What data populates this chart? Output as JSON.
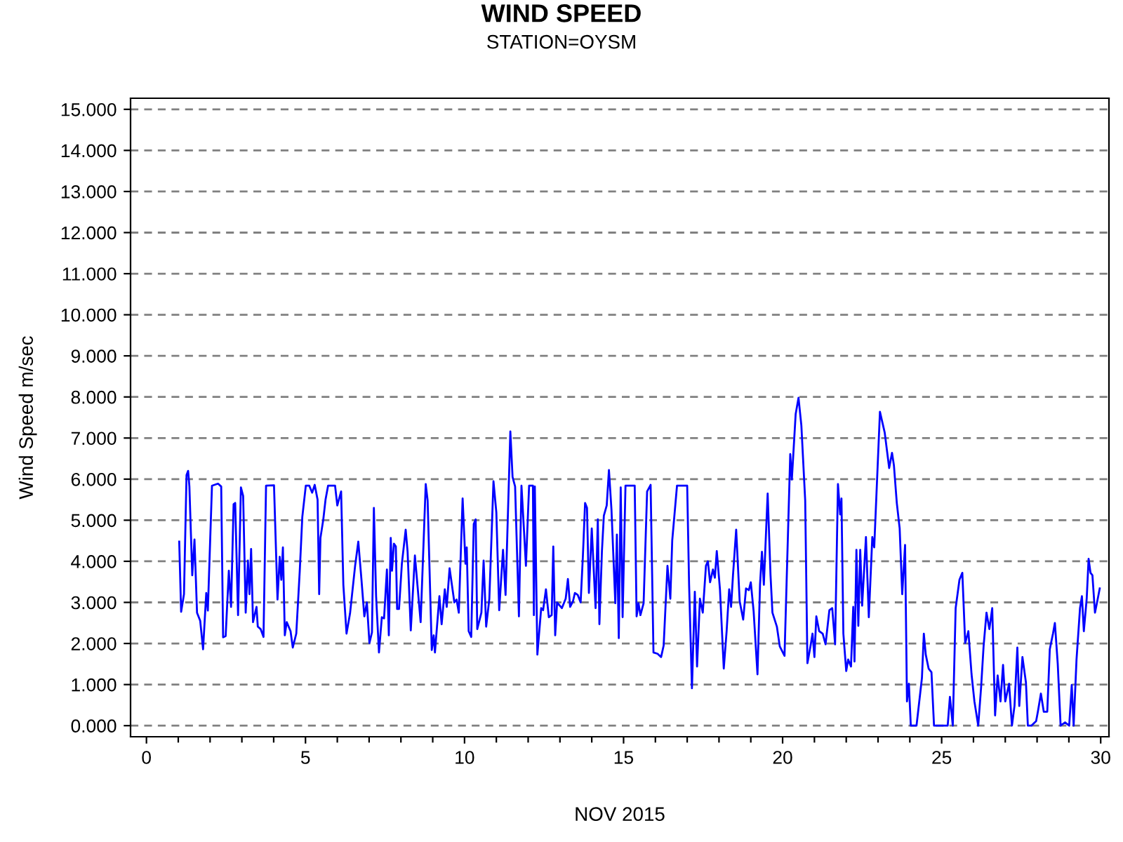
{
  "chart_data": {
    "type": "line",
    "title": "WIND SPEED",
    "subtitle": "STATION=OYSM",
    "xlabel": "NOV 2015",
    "ylabel": "Wind Speed m/sec",
    "x": [
      1.03,
      1.09,
      1.18,
      1.26,
      1.31,
      1.35,
      1.44,
      1.51,
      1.59,
      1.69,
      1.78,
      1.88,
      1.93,
      2.06,
      2.25,
      2.35,
      2.41,
      2.49,
      2.59,
      2.66,
      2.74,
      2.79,
      2.88,
      2.97,
      3.04,
      3.12,
      3.19,
      3.24,
      3.29,
      3.35,
      3.46,
      3.5,
      3.59,
      3.68,
      3.76,
      4.01,
      4.12,
      4.19,
      4.24,
      4.29,
      4.35,
      4.41,
      4.53,
      4.6,
      4.71,
      4.82,
      4.9,
      5.01,
      5.12,
      5.21,
      5.29,
      5.38,
      5.43,
      5.47,
      5.56,
      5.63,
      5.71,
      5.93,
      6.0,
      6.12,
      6.19,
      6.29,
      6.4,
      6.56,
      6.66,
      6.76,
      6.85,
      6.93,
      7.01,
      7.09,
      7.15,
      7.22,
      7.31,
      7.4,
      7.47,
      7.56,
      7.62,
      7.68,
      7.72,
      7.78,
      7.84,
      7.88,
      7.94,
      8.03,
      8.15,
      8.21,
      8.31,
      8.44,
      8.62,
      8.78,
      8.84,
      8.97,
      9.03,
      9.07,
      9.21,
      9.28,
      9.38,
      9.44,
      9.53,
      9.68,
      9.75,
      9.82,
      9.94,
      10.03,
      10.07,
      10.13,
      10.21,
      10.29,
      10.35,
      10.4,
      10.53,
      10.6,
      10.68,
      10.78,
      10.91,
      11.0,
      11.09,
      11.21,
      11.29,
      11.44,
      11.51,
      11.59,
      11.71,
      11.79,
      11.85,
      11.93,
      12.03,
      12.15,
      12.18,
      12.21,
      12.29,
      12.41,
      12.47,
      12.56,
      12.65,
      12.74,
      12.79,
      12.85,
      12.91,
      13.06,
      13.18,
      13.25,
      13.32,
      13.41,
      13.47,
      13.56,
      13.65,
      13.72,
      13.79,
      13.85,
      13.91,
      14.0,
      14.12,
      14.19,
      14.24,
      14.32,
      14.38,
      14.47,
      14.54,
      14.62,
      14.74,
      14.79,
      14.85,
      14.91,
      14.97,
      15.06,
      15.35,
      15.41,
      15.47,
      15.53,
      15.63,
      15.74,
      15.85,
      15.94,
      16.07,
      16.18,
      16.26,
      16.38,
      16.47,
      16.53,
      16.68,
      17.0,
      17.06,
      17.15,
      17.24,
      17.31,
      17.4,
      17.49,
      17.59,
      17.65,
      17.72,
      17.81,
      17.87,
      17.93,
      18.03,
      18.15,
      18.24,
      18.32,
      18.38,
      18.44,
      18.54,
      18.65,
      18.76,
      18.85,
      18.94,
      19.0,
      19.09,
      19.21,
      19.29,
      19.35,
      19.41,
      19.53,
      19.62,
      19.68,
      19.82,
      19.91,
      20.06,
      20.24,
      20.29,
      20.41,
      20.5,
      20.59,
      20.71,
      20.78,
      20.88,
      20.94,
      21.0,
      21.06,
      21.15,
      21.26,
      21.35,
      21.47,
      21.56,
      21.65,
      21.74,
      21.81,
      21.85,
      21.91,
      22.0,
      22.06,
      22.15,
      22.22,
      22.26,
      22.32,
      22.38,
      22.44,
      22.5,
      22.62,
      22.71,
      22.82,
      22.88,
      23.06,
      23.21,
      23.35,
      23.44,
      23.5,
      23.59,
      23.68,
      23.76,
      23.85,
      23.91,
      23.97,
      24.03,
      24.21,
      24.38,
      24.44,
      24.5,
      24.59,
      24.68,
      24.76,
      25.19,
      25.26,
      25.35,
      25.44,
      25.56,
      25.65,
      25.74,
      25.84,
      25.94,
      26.03,
      26.15,
      26.24,
      26.32,
      26.41,
      26.5,
      26.59,
      26.68,
      26.76,
      26.85,
      26.93,
      27.0,
      27.12,
      27.21,
      27.29,
      27.38,
      27.44,
      27.54,
      27.65,
      27.71,
      27.82,
      27.97,
      28.03,
      28.12,
      28.21,
      28.32,
      28.4,
      28.5,
      28.56,
      28.65,
      28.74,
      28.88,
      29.01,
      29.09,
      29.15,
      29.24,
      29.35,
      29.41,
      29.47,
      29.56,
      29.62,
      29.68,
      29.74,
      29.82,
      29.88,
      29.97
    ],
    "series": [
      {
        "color": "#0000ff",
        "values": [
          4.48,
          2.77,
          3.2,
          6.1,
          6.2,
          5.82,
          3.66,
          4.53,
          2.75,
          2.55,
          1.86,
          3.23,
          2.8,
          5.84,
          5.89,
          5.82,
          2.15,
          2.18,
          3.77,
          2.89,
          5.39,
          5.42,
          2.69,
          5.8,
          5.59,
          2.75,
          4.02,
          3.2,
          4.3,
          2.52,
          2.89,
          2.41,
          2.35,
          2.16,
          5.84,
          5.85,
          3.07,
          4.11,
          3.55,
          4.34,
          2.2,
          2.52,
          2.3,
          1.9,
          2.24,
          3.77,
          5.08,
          5.84,
          5.84,
          5.67,
          5.86,
          5.5,
          3.2,
          4.57,
          5.02,
          5.5,
          5.84,
          5.84,
          5.36,
          5.7,
          3.43,
          2.24,
          2.73,
          3.89,
          4.48,
          3.55,
          2.66,
          3.0,
          2.01,
          2.27,
          5.3,
          3.15,
          1.78,
          2.64,
          2.61,
          3.8,
          2.2,
          4.57,
          3.77,
          4.43,
          4.36,
          2.84,
          2.84,
          3.94,
          4.77,
          4.23,
          2.32,
          4.14,
          2.52,
          5.88,
          5.48,
          1.84,
          2.2,
          1.78,
          3.15,
          2.47,
          3.32,
          2.89,
          3.83,
          3.0,
          3.07,
          2.75,
          5.53,
          3.94,
          4.34,
          2.3,
          2.16,
          4.91,
          5.02,
          2.35,
          2.75,
          4.02,
          2.41,
          3.09,
          5.95,
          5.19,
          2.81,
          4.28,
          3.18,
          7.16,
          6.05,
          5.82,
          2.66,
          5.84,
          5.02,
          3.89,
          5.84,
          5.84,
          2.69,
          5.82,
          1.73,
          2.86,
          2.81,
          3.32,
          2.64,
          2.69,
          4.36,
          2.2,
          3.0,
          2.86,
          3.09,
          3.57,
          2.89,
          3.03,
          3.23,
          3.18,
          3.0,
          4.11,
          5.42,
          5.3,
          3.23,
          4.8,
          2.86,
          5.02,
          2.47,
          4.25,
          5.11,
          5.36,
          6.22,
          5.25,
          2.98,
          4.65,
          2.13,
          5.8,
          2.64,
          5.84,
          5.84,
          2.66,
          2.98,
          2.69,
          2.98,
          5.7,
          5.86,
          1.78,
          1.75,
          1.67,
          1.95,
          3.89,
          3.09,
          4.51,
          5.84,
          5.84,
          3.43,
          0.91,
          3.26,
          1.44,
          3.09,
          2.75,
          3.89,
          4.0,
          3.49,
          3.8,
          3.6,
          4.25,
          3.32,
          1.39,
          2.3,
          3.32,
          2.89,
          3.66,
          4.77,
          3.03,
          2.58,
          3.34,
          3.3,
          3.49,
          2.77,
          1.25,
          3.43,
          4.23,
          3.43,
          5.65,
          3.66,
          2.75,
          2.41,
          1.93,
          1.7,
          6.61,
          5.99,
          7.58,
          7.98,
          7.3,
          5.48,
          1.52,
          1.95,
          2.24,
          1.67,
          2.66,
          2.3,
          2.24,
          1.98,
          2.81,
          2.86,
          1.98,
          5.88,
          5.14,
          5.53,
          2.24,
          1.33,
          1.61,
          1.44,
          2.89,
          1.56,
          4.28,
          2.43,
          4.28,
          2.92,
          4.59,
          2.64,
          4.59,
          4.34,
          7.64,
          7.13,
          6.27,
          6.64,
          6.33,
          5.42,
          4.8,
          3.2,
          4.4,
          0.59,
          1.02,
          0,
          0,
          1.16,
          2.24,
          1.73,
          1.39,
          1.3,
          0,
          0,
          0.7,
          0,
          2.86,
          3.55,
          3.72,
          2.01,
          2.3,
          1.25,
          0.59,
          0,
          0.93,
          1.95,
          2.75,
          2.35,
          2.86,
          0.25,
          1.22,
          0.59,
          1.48,
          0.59,
          1.02,
          0,
          0.48,
          1.9,
          0.48,
          1.67,
          1.05,
          0,
          0,
          0.11,
          0.36,
          0.78,
          0.34,
          0.34,
          1.86,
          2.24,
          2.5,
          1.5,
          0,
          0.08,
          0,
          0.99,
          0,
          1.61,
          2.86,
          3.15,
          2.3,
          3.09,
          4.06,
          3.72,
          3.66,
          2.75,
          2.98,
          3.34
        ]
      }
    ],
    "xlim": [
      -0.5,
      30.26
    ],
    "xticks": [
      0,
      {
        "value": 1,
        "label": null
      },
      {
        "value": 2,
        "label": null
      },
      {
        "value": 3,
        "label": null
      },
      {
        "value": 4,
        "label": null
      },
      5,
      {
        "value": 6,
        "label": null
      },
      {
        "value": 7,
        "label": null
      },
      {
        "value": 8,
        "label": null
      },
      {
        "value": 9,
        "label": null
      },
      10,
      {
        "value": 11,
        "label": null
      },
      {
        "value": 12,
        "label": null
      },
      {
        "value": 13,
        "label": null
      },
      {
        "value": 14,
        "label": null
      },
      15,
      {
        "value": 16,
        "label": null
      },
      {
        "value": 17,
        "label": null
      },
      {
        "value": 18,
        "label": null
      },
      {
        "value": 19,
        "label": null
      },
      20,
      {
        "value": 21,
        "label": null
      },
      {
        "value": 22,
        "label": null
      },
      {
        "value": 23,
        "label": null
      },
      {
        "value": 24,
        "label": null
      },
      25,
      {
        "value": 26,
        "label": null
      },
      {
        "value": 27,
        "label": null
      },
      {
        "value": 28,
        "label": null
      },
      {
        "value": 29,
        "label": null
      },
      30
    ],
    "ylim": [
      -0.27,
      15.27
    ],
    "yticks": [
      {
        "value": 0,
        "label": "0.000"
      },
      {
        "value": 1,
        "label": "1.000"
      },
      {
        "value": 2,
        "label": "2.000"
      },
      {
        "value": 3,
        "label": "3.000"
      },
      {
        "value": 4,
        "label": "4.000"
      },
      {
        "value": 5,
        "label": "5.000"
      },
      {
        "value": 6,
        "label": "6.000"
      },
      {
        "value": 7,
        "label": "7.000"
      },
      {
        "value": 8,
        "label": "8.000"
      },
      {
        "value": 9,
        "label": "9.000"
      },
      {
        "value": 10,
        "label": "10.000"
      },
      {
        "value": 11,
        "label": "11.000"
      },
      {
        "value": 12,
        "label": "12.000"
      },
      {
        "value": 13,
        "label": "13.000"
      },
      {
        "value": 14,
        "label": "14.000"
      },
      {
        "value": 15,
        "label": "15.000"
      }
    ],
    "grid": "y",
    "line_style": "solid"
  }
}
